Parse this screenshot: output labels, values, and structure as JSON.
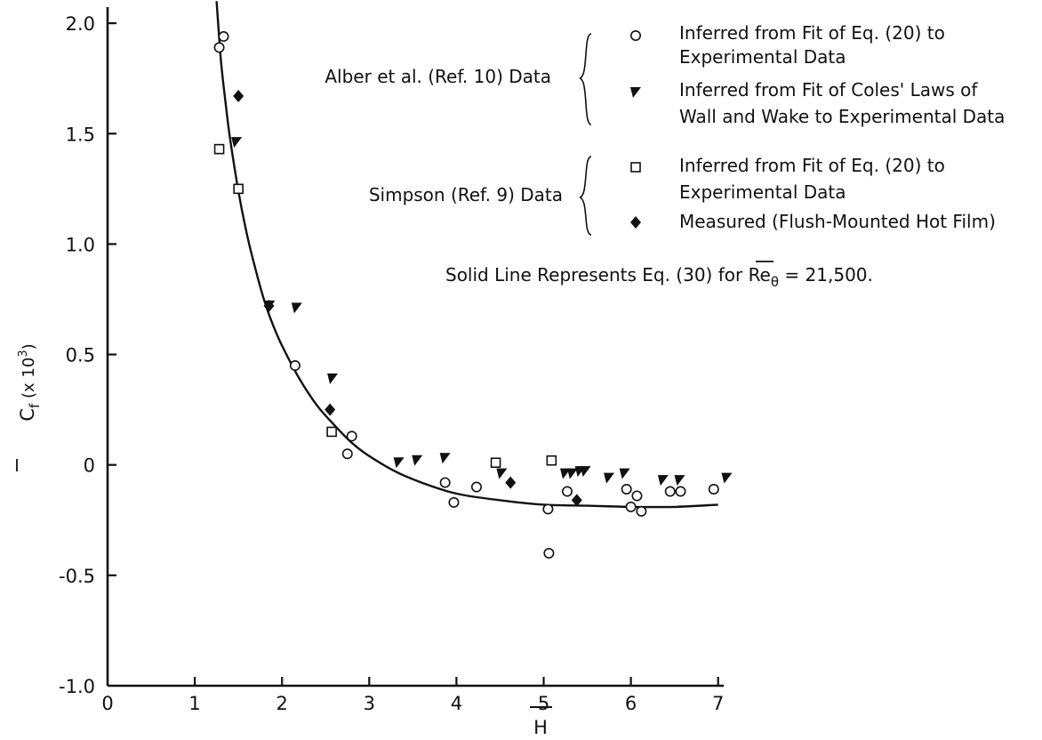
{
  "chart_data": {
    "type": "scatter",
    "xlabel": "H",
    "ylabel": "C_f (x 10^3)",
    "ylabel_parts": {
      "c": "C",
      "sub": "f",
      "rest": " (x 10",
      "sup": "3",
      "close": ")"
    },
    "xlim": [
      0,
      7.2
    ],
    "ylim": [
      -1.0,
      2.0
    ],
    "x_ticks": [
      "0",
      "1",
      "2",
      "3",
      "4",
      "5",
      "6",
      "7"
    ],
    "y_ticks": [
      "-1.0",
      "-0.5",
      "0",
      "0.5",
      "1.0",
      "1.5",
      "2.0"
    ],
    "grid": false,
    "legend_placement": "top-right",
    "groups": [
      {
        "label": "Alber et al. (Ref. 10) Data"
      },
      {
        "label": "Simpson (Ref. 9) Data"
      }
    ],
    "series": [
      {
        "name_lines": [
          "Inferred from Fit of Eq. (20) to",
          "Experimental Data"
        ],
        "marker": "circle",
        "group": 0,
        "points": [
          [
            1.28,
            1.89
          ],
          [
            1.33,
            1.94
          ],
          [
            2.15,
            0.45
          ],
          [
            2.75,
            0.05
          ],
          [
            2.8,
            0.13
          ],
          [
            3.87,
            -0.08
          ],
          [
            3.97,
            -0.17
          ],
          [
            4.23,
            -0.1
          ],
          [
            5.05,
            -0.2
          ],
          [
            5.06,
            -0.4
          ],
          [
            5.27,
            -0.12
          ],
          [
            5.95,
            -0.11
          ],
          [
            6.0,
            -0.19
          ],
          [
            6.07,
            -0.14
          ],
          [
            6.12,
            -0.21
          ],
          [
            6.45,
            -0.12
          ],
          [
            6.57,
            -0.12
          ],
          [
            6.95,
            -0.11
          ]
        ]
      },
      {
        "name_lines": [
          "Inferred from Fit of Coles' Laws of",
          "Wall and Wake to Experimental Data"
        ],
        "marker": "filled-triangle",
        "group": 0,
        "points": [
          [
            1.48,
            1.46
          ],
          [
            1.86,
            0.72
          ],
          [
            2.17,
            0.71
          ],
          [
            2.58,
            0.39
          ],
          [
            3.34,
            0.01
          ],
          [
            3.55,
            0.02
          ],
          [
            3.87,
            0.03
          ],
          [
            4.52,
            -0.04
          ],
          [
            5.25,
            -0.04
          ],
          [
            5.33,
            -0.04
          ],
          [
            5.42,
            -0.03
          ],
          [
            5.48,
            -0.03
          ],
          [
            5.75,
            -0.06
          ],
          [
            5.93,
            -0.04
          ],
          [
            6.37,
            -0.07
          ],
          [
            6.56,
            -0.07
          ],
          [
            7.1,
            -0.06
          ]
        ]
      },
      {
        "name_lines": [
          "Inferred from Fit of Eq. (20) to",
          "Experimental Data"
        ],
        "marker": "square",
        "group": 1,
        "points": [
          [
            1.28,
            1.43
          ],
          [
            1.5,
            1.25
          ],
          [
            2.57,
            0.15
          ],
          [
            4.45,
            0.01
          ],
          [
            5.09,
            0.02
          ]
        ]
      },
      {
        "name_lines": [
          "Measured (Flush-Mounted Hot Film)"
        ],
        "marker": "filled-diamond",
        "group": 1,
        "points": [
          [
            1.5,
            1.67
          ],
          [
            1.85,
            0.72
          ],
          [
            2.55,
            0.25
          ],
          [
            4.62,
            -0.08
          ],
          [
            5.38,
            -0.16
          ]
        ]
      }
    ],
    "curve": {
      "x": [
        1.25,
        1.3,
        1.35,
        1.4,
        1.5,
        1.6,
        1.7,
        1.8,
        1.9,
        2.0,
        2.2,
        2.4,
        2.6,
        2.8,
        3.0,
        3.3,
        3.6,
        4.0,
        4.5,
        5.0,
        5.5,
        6.0,
        6.5,
        7.0
      ],
      "y": [
        2.1,
        1.83,
        1.65,
        1.49,
        1.24,
        1.04,
        0.88,
        0.74,
        0.63,
        0.54,
        0.39,
        0.27,
        0.18,
        0.1,
        0.04,
        -0.03,
        -0.08,
        -0.13,
        -0.16,
        -0.18,
        -0.185,
        -0.19,
        -0.19,
        -0.18
      ]
    },
    "annotation": "Solid Line Represents Eq. (30) for Reθ = 21,500.",
    "annotation_parts": {
      "pre": "Solid Line Represents Eq. (30) for ",
      "re": "Re",
      "sub": "θ",
      "post": " = 21,500."
    }
  }
}
